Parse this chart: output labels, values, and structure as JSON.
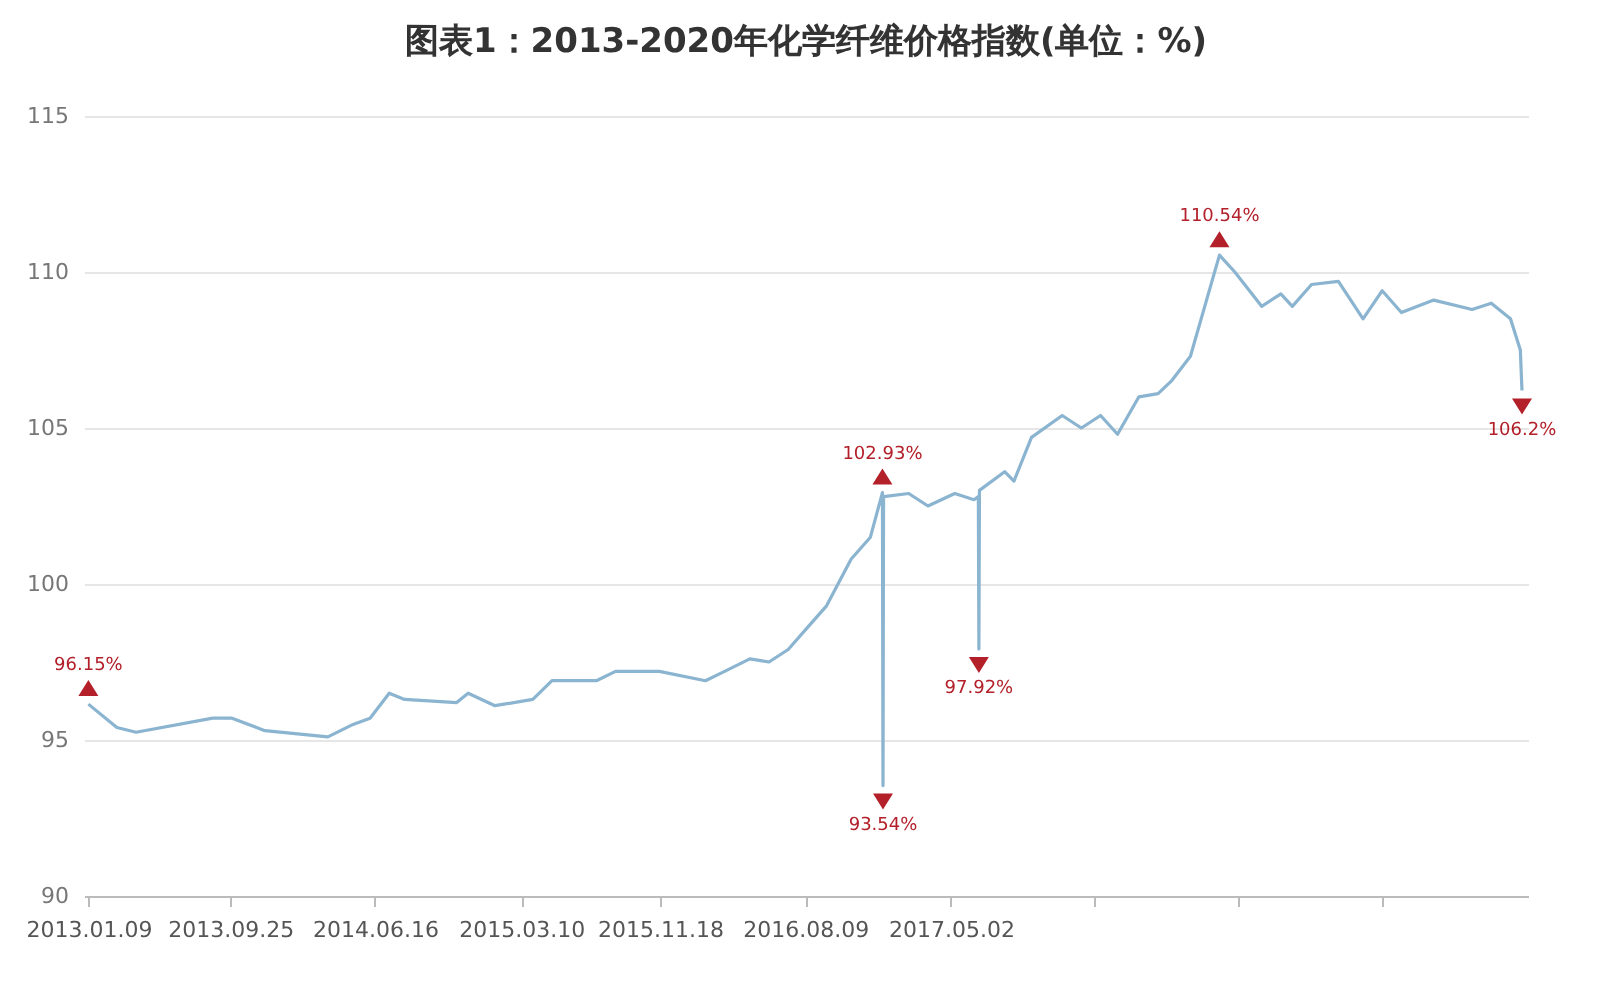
{
  "chart_data": {
    "type": "line",
    "title": "图表1：2013-2020年化学纤维价格指数(单位：%)",
    "series": [
      {
        "color": "#8ab4d0",
        "x": [
          "2013-01-09",
          "2013-03-02",
          "2013-04-06",
          "2013-08-24",
          "2013-09-28",
          "2013-11-27",
          "2014-03-22",
          "2014-05-07",
          "2014-06-07",
          "2014-07-12",
          "2014-08-09",
          "2014-11-12",
          "2014-12-03",
          "2015-01-21",
          "2015-03-31",
          "2015-05-05",
          "2015-07-25",
          "2015-08-29",
          "2015-11-17",
          "2016-02-09",
          "2016-03-15",
          "2016-04-30",
          "2016-06-04",
          "2016-07-09",
          "2016-08-13",
          "2016-09-17",
          "2016-11-01",
          "2016-12-06",
          "2016-12-28",
          "2016-12-29",
          "2016-12-30",
          "2017-02-14",
          "2017-03-21",
          "2017-05-09",
          "2017-06-13",
          "2017-06-21",
          "2017-06-22",
          "2017-06-23",
          "2017-08-08",
          "2017-08-25",
          "2017-09-26",
          "2017-11-21",
          "2017-12-26",
          "2018-01-30",
          "2018-03-02",
          "2018-04-10",
          "2018-05-15",
          "2018-06-08",
          "2018-07-13",
          "2018-09-04",
          "2018-10-02",
          "2018-11-20",
          "2018-12-25",
          "2019-01-15",
          "2019-02-19",
          "2019-04-09",
          "2019-05-24",
          "2019-06-28",
          "2019-08-02",
          "2019-09-30",
          "2019-12-09",
          "2020-01-13",
          "2020-02-17",
          "2020-03-06",
          "2020-03-09"
        ],
        "values": [
          96.15,
          95.4,
          95.25,
          95.7,
          95.7,
          95.3,
          95.1,
          95.5,
          95.7,
          96.5,
          96.3,
          96.2,
          96.5,
          96.1,
          96.3,
          96.9,
          96.9,
          97.2,
          97.2,
          96.9,
          97.2,
          97.6,
          97.5,
          97.9,
          98.6,
          99.3,
          100.8,
          101.5,
          102.93,
          93.54,
          102.8,
          102.9,
          102.5,
          102.9,
          102.7,
          102.8,
          97.92,
          103.0,
          103.6,
          103.3,
          104.7,
          105.4,
          105.0,
          105.4,
          104.8,
          106.0,
          106.1,
          106.5,
          107.3,
          110.54,
          110.0,
          108.9,
          109.3,
          108.9,
          109.6,
          109.7,
          108.5,
          109.4,
          108.7,
          109.1,
          108.8,
          109.0,
          108.5,
          107.5,
          106.2
        ]
      }
    ],
    "xlim": [
      "2013-01-01",
      "2020-03-20"
    ],
    "xticks": [
      {
        "value": "2013-01-09",
        "label": "2013.01.09"
      },
      {
        "value": "2013-09-25",
        "label": "2013.09.25"
      },
      {
        "value": "2014-06-16",
        "label": "2014.06.16"
      },
      {
        "value": "2015-03-10",
        "label": "2015.03.10"
      },
      {
        "value": "2015-11-18",
        "label": "2015.11.18"
      },
      {
        "value": "2016-08-09",
        "label": "2016.08.09"
      },
      {
        "value": "2017-05-02",
        "label": "2017.05.02"
      },
      {
        "value": "2018-01-19",
        "label": null
      },
      {
        "value": "2018-10-09",
        "label": null
      },
      {
        "value": "2019-06-28",
        "label": null
      }
    ],
    "ylim": [
      90,
      115
    ],
    "yticks": [
      90,
      95,
      100,
      105,
      110,
      115
    ],
    "grid": "y",
    "line_style": "solid",
    "annotations": [
      {
        "text": "96.15%",
        "x": "2013-01-09",
        "y": 96.15
      },
      {
        "text": "102.93%",
        "x": "2016-12-28",
        "y": 102.93
      },
      {
        "text": "93.54%",
        "x": "2016-12-29",
        "y": 93.54
      },
      {
        "text": "97.92%",
        "x": "2017-06-22",
        "y": 97.92
      },
      {
        "text": "110.54%",
        "x": "2018-09-04",
        "y": 110.54
      },
      {
        "text": "106.2%",
        "x": "2020-03-09",
        "y": 106.2
      }
    ]
  }
}
